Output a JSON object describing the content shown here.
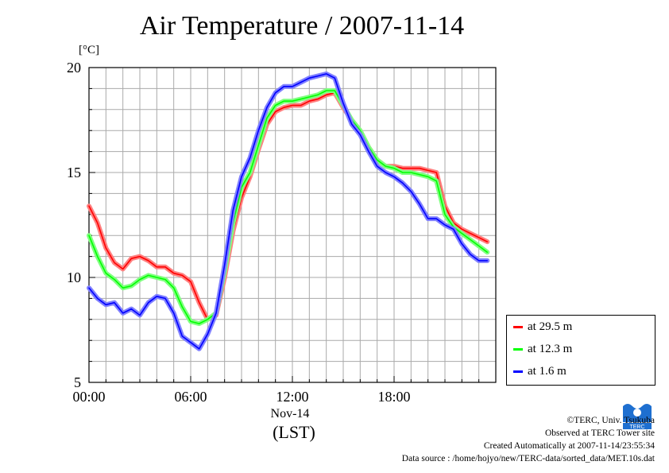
{
  "chart_data": {
    "type": "line",
    "title": "Air Temperature / 2007-11-14",
    "ylabel": "[°C]",
    "xlabel": "(LST)",
    "x_sublabel": "Nov-14",
    "ylim": [
      5,
      20
    ],
    "xlim": [
      "00:00",
      "24:00"
    ],
    "y_ticks": [
      "5",
      "10",
      "15",
      "20"
    ],
    "x_ticks": [
      "00:00",
      "06:00",
      "12:00",
      "18:00"
    ],
    "grid": true,
    "legend_position": "bottom-right outside",
    "x_hours": [
      0,
      0.5,
      1,
      1.5,
      2,
      2.5,
      3,
      3.5,
      4,
      4.5,
      5,
      5.5,
      6,
      6.5,
      7,
      7.5,
      8,
      8.5,
      9,
      9.5,
      10,
      10.5,
      11,
      11.5,
      12,
      12.5,
      13,
      13.5,
      14,
      14.5,
      15,
      15.5,
      16,
      16.5,
      17,
      17.5,
      18,
      18.5,
      19,
      19.5,
      20,
      20.5,
      21,
      21.5,
      22,
      22.5,
      23,
      23.5
    ],
    "series": [
      {
        "name": "at 29.5 m",
        "color": "#ff0000",
        "values": [
          13.4,
          12.6,
          11.4,
          10.7,
          10.4,
          10.9,
          11.0,
          10.8,
          10.5,
          10.5,
          10.2,
          10.1,
          9.8,
          8.8,
          8.0,
          8.2,
          10.0,
          12.2,
          13.8,
          14.8,
          16.1,
          17.3,
          17.9,
          18.1,
          18.2,
          18.2,
          18.4,
          18.5,
          18.7,
          18.8,
          18.1,
          17.5,
          17.0,
          16.2,
          15.6,
          15.3,
          15.3,
          15.2,
          15.2,
          15.2,
          15.1,
          15.0,
          13.4,
          12.6,
          12.3,
          12.1,
          11.9,
          11.7
        ]
      },
      {
        "name": "at 12.3 m",
        "color": "#00ff00",
        "values": [
          12.0,
          11.0,
          10.2,
          9.9,
          9.5,
          9.6,
          9.9,
          10.1,
          10.0,
          9.9,
          9.5,
          8.6,
          7.9,
          7.8,
          8.0,
          8.3,
          10.3,
          12.6,
          14.3,
          15.0,
          16.3,
          17.6,
          18.2,
          18.4,
          18.4,
          18.5,
          18.6,
          18.7,
          18.9,
          18.9,
          18.2,
          17.5,
          17.0,
          16.2,
          15.6,
          15.3,
          15.2,
          15.0,
          15.0,
          14.9,
          14.8,
          14.6,
          13.0,
          12.4,
          12.1,
          11.8,
          11.5,
          11.2
        ]
      },
      {
        "name": "at 1.6 m",
        "color": "#0000ff",
        "values": [
          9.5,
          9.0,
          8.7,
          8.8,
          8.3,
          8.5,
          8.2,
          8.8,
          9.1,
          9.0,
          8.3,
          7.2,
          6.9,
          6.6,
          7.3,
          8.3,
          10.6,
          13.2,
          14.8,
          15.7,
          17.0,
          18.1,
          18.8,
          19.1,
          19.1,
          19.3,
          19.5,
          19.6,
          19.7,
          19.5,
          18.3,
          17.3,
          16.8,
          16.0,
          15.3,
          15.0,
          14.8,
          14.5,
          14.1,
          13.5,
          12.8,
          12.8,
          12.5,
          12.3,
          11.6,
          11.1,
          10.8,
          10.8
        ]
      }
    ]
  },
  "legend": {
    "items": [
      "at 29.5 m",
      "at 12.3 m",
      "at 1.6 m"
    ]
  },
  "credits": {
    "line1": "©TERC, Univ. Tsukuba",
    "line2": "Observed at TERC Tower site",
    "line3": "Created Automatically at 2007-11-14/23:55:34",
    "line4": "Data source : /home/hojyo/new/TERC-data/sorted_data/MET.10s.dat"
  },
  "logo": {
    "icon": "terc-logo-icon",
    "text": "TERC",
    "color": "#1e6fd0"
  }
}
